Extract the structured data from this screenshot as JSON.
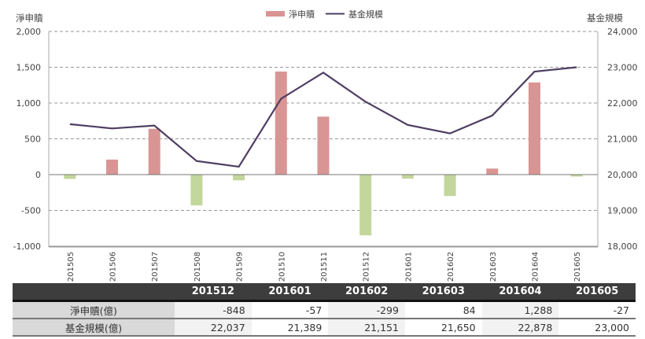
{
  "chart_data": {
    "type": "bar+line",
    "categories": [
      "201505",
      "201506",
      "201507",
      "201508",
      "201509",
      "201510",
      "201511",
      "201512",
      "201601",
      "201602",
      "201603",
      "201604",
      "201605"
    ],
    "series": [
      {
        "name": "淨申贖",
        "type": "bar",
        "axis": "left",
        "values": [
          -60,
          210,
          640,
          -430,
          -80,
          1440,
          810,
          -848,
          -57,
          -299,
          84,
          1288,
          -27
        ],
        "positive_color": "#d99594",
        "negative_color": "#c3d69b"
      },
      {
        "name": "基金規模",
        "type": "line",
        "axis": "right",
        "values": [
          21410,
          21290,
          21370,
          20380,
          20220,
          22120,
          22850,
          22037,
          21389,
          21151,
          21650,
          22878,
          23000
        ],
        "color": "#4f3e63"
      }
    ],
    "left_axis": {
      "title": "淨申贖",
      "ylim": [
        -1000,
        2000
      ],
      "ticks": [
        "2,000",
        "1,500",
        "1,000",
        "500",
        "0",
        "-500",
        "-1,000"
      ]
    },
    "right_axis": {
      "title": "基金規模",
      "ylim": [
        18000,
        24000
      ],
      "ticks": [
        "24,000",
        "23,000",
        "22,000",
        "21,000",
        "20,000",
        "19,000",
        "18,000"
      ]
    },
    "grid": "dashed horizontal",
    "legend": {
      "position": "top-center",
      "entries": [
        "淨申贖",
        "基金規模"
      ]
    }
  },
  "legend": {
    "bar_label": "淨申贖",
    "line_label": "基金規模"
  },
  "axes": {
    "left_title": "淨申贖",
    "right_title": "基金規模"
  },
  "table": {
    "headers": [
      "",
      "201512",
      "201601",
      "201602",
      "201603",
      "201604",
      "201605"
    ],
    "rows": [
      {
        "label": "淨申贖(億)",
        "values": [
          "-848",
          "-57",
          "-299",
          "84",
          "1,288",
          "-27"
        ]
      },
      {
        "label": "基金規模(億)",
        "values": [
          "22,037",
          "21,389",
          "21,151",
          "21,650",
          "22,878",
          "23,000"
        ]
      }
    ]
  }
}
